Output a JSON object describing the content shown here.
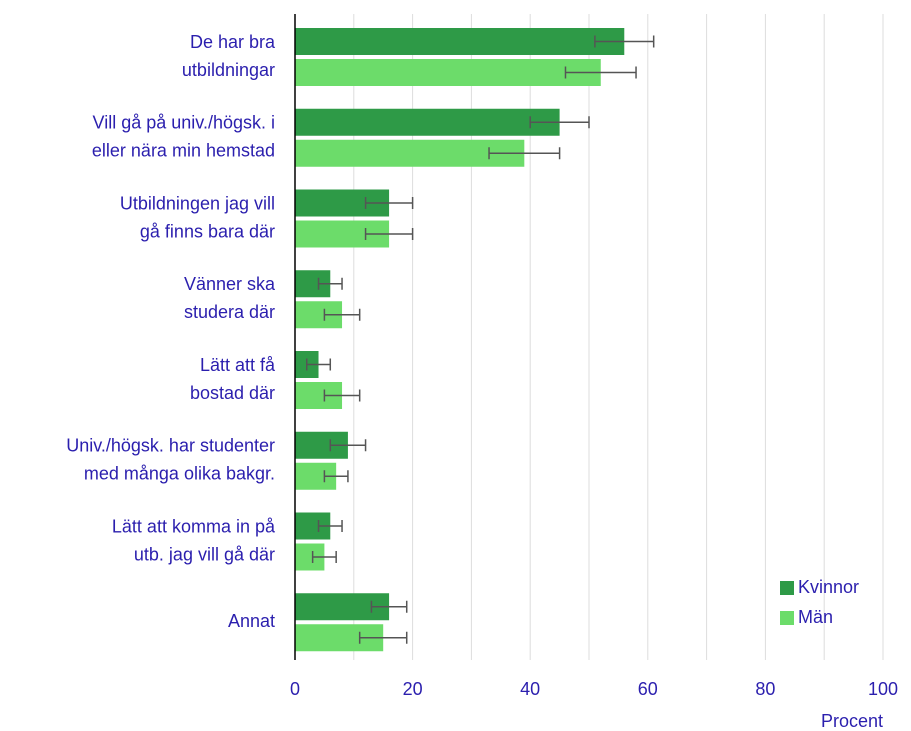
{
  "chart_data": {
    "type": "barh",
    "categories": [
      [
        "De har bra",
        "utbildningar"
      ],
      [
        "Vill gå på univ./högsk. i",
        "eller nära min hemstad"
      ],
      [
        "Utbildningen jag vill",
        "gå finns bara där"
      ],
      [
        "Vänner ska",
        "studera där"
      ],
      [
        "Lätt att få",
        "bostad där"
      ],
      [
        "Univ./högsk. har studenter",
        "med många olika bakgr."
      ],
      [
        "Lätt att komma in på",
        "utb.  jag vill gå där"
      ],
      [
        "Annat"
      ]
    ],
    "series": [
      {
        "name": "Kvinnor",
        "color": "#2e9a47",
        "values": [
          56,
          45,
          16,
          6,
          4,
          9,
          6,
          16
        ],
        "errors": [
          5,
          5,
          4,
          2,
          2,
          3,
          2,
          3
        ]
      },
      {
        "name": "Män",
        "color": "#6cdc6a",
        "values": [
          52,
          39,
          16,
          8,
          8,
          7,
          5,
          15
        ],
        "errors": [
          6,
          6,
          4,
          3,
          3,
          2,
          2,
          4
        ]
      }
    ],
    "xlabel": "Procent",
    "xlim": [
      0,
      100
    ],
    "xticks": [
      0,
      20,
      40,
      60,
      80,
      100
    ],
    "xminor_ticks": [
      10,
      30,
      50,
      70,
      90
    ],
    "grid": true,
    "legend": "lower right"
  }
}
